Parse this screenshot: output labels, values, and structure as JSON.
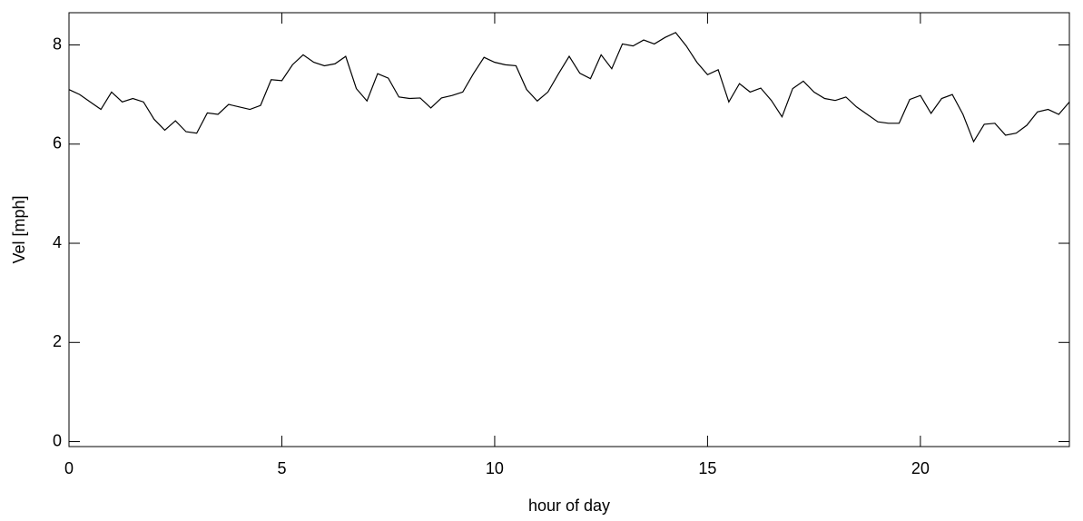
{
  "chart_data": {
    "type": "line",
    "x_label": "hour of day",
    "y_label": "Vel [mph]",
    "x": [
      0,
      0.25,
      0.5,
      0.75,
      1,
      1.25,
      1.5,
      1.75,
      2,
      2.25,
      2.5,
      2.75,
      3,
      3.25,
      3.5,
      3.75,
      4,
      4.25,
      4.5,
      4.75,
      5,
      5.25,
      5.5,
      5.75,
      6,
      6.25,
      6.5,
      6.75,
      7,
      7.25,
      7.5,
      7.75,
      8,
      8.25,
      8.5,
      8.75,
      9,
      9.25,
      9.5,
      9.75,
      10,
      10.25,
      10.5,
      10.75,
      11,
      11.25,
      11.5,
      11.75,
      12,
      12.25,
      12.5,
      12.75,
      13,
      13.25,
      13.5,
      13.75,
      14,
      14.25,
      14.5,
      14.75,
      15,
      15.25,
      15.5,
      15.75,
      16,
      16.25,
      16.5,
      16.75,
      17,
      17.25,
      17.5,
      17.75,
      18,
      18.25,
      18.5,
      18.75,
      19,
      19.25,
      19.5,
      19.75,
      20,
      20.25,
      20.5,
      20.75,
      21,
      21.25,
      21.5,
      21.75,
      22,
      22.25,
      22.5,
      22.75,
      23,
      23.25,
      23.5
    ],
    "series": [
      {
        "color": "#000000",
        "values": [
          7.1,
          7.0,
          6.85,
          6.7,
          7.05,
          6.85,
          6.92,
          6.85,
          6.5,
          6.28,
          6.47,
          6.25,
          6.22,
          6.63,
          6.6,
          6.8,
          6.75,
          6.7,
          6.78,
          7.3,
          7.28,
          7.6,
          7.8,
          7.65,
          7.58,
          7.62,
          7.77,
          7.12,
          6.87,
          7.42,
          7.33,
          6.95,
          6.92,
          6.93,
          6.73,
          6.93,
          6.98,
          7.05,
          7.42,
          7.75,
          7.65,
          7.6,
          7.58,
          7.1,
          6.87,
          7.05,
          7.42,
          7.77,
          7.43,
          7.32,
          7.8,
          7.52,
          8.02,
          7.98,
          8.1,
          8.02,
          8.15,
          8.25,
          7.98,
          7.65,
          7.4,
          7.5,
          6.85,
          7.22,
          7.05,
          7.13,
          6.88,
          6.55,
          7.12,
          7.27,
          7.05,
          6.92,
          6.88,
          6.95,
          6.75,
          6.6,
          6.45,
          6.42,
          6.42,
          6.9,
          6.98,
          6.62,
          6.92,
          7.0,
          6.6,
          6.05,
          6.4,
          6.42,
          6.18,
          6.22,
          6.38,
          6.65,
          6.7,
          6.6,
          6.85
        ]
      }
    ],
    "xlim": [
      0,
      23.5
    ],
    "xticks": [
      0,
      5,
      10,
      15,
      20
    ],
    "ylim": [
      -0.1,
      8.65
    ],
    "yticks": [
      0,
      2,
      4,
      6,
      8
    ]
  }
}
